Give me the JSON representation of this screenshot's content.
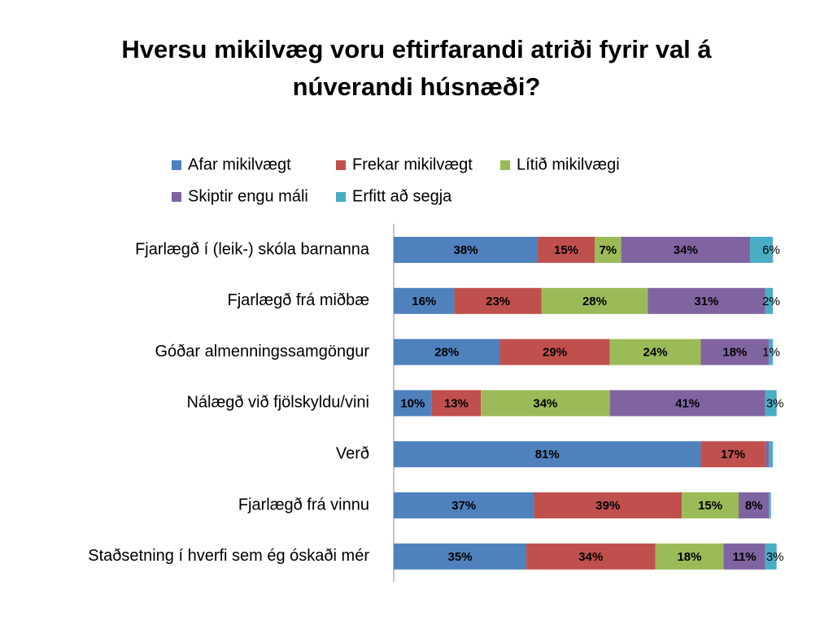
{
  "chart_data": {
    "type": "stacked-bar-horizontal",
    "title": "Hversu mikilvæg voru eftirfarandi atriði fyrir val á núverandi húsnæði?",
    "categories": [
      "Fjarlægð í (leik-) skóla barnanna",
      "Fjarlægð frá miðbæ",
      "Góðar almenningssamgöngur",
      "Nálægð við fjölskyldu/vini",
      "Verð",
      "Fjarlægð frá vinnu",
      "Staðsetning í hverfi sem ég óskaði mér"
    ],
    "xlim": [
      0,
      100
    ],
    "series": [
      {
        "name": "Afar mikilvægt",
        "color": "#4f81bd",
        "values": [
          38,
          16,
          28,
          10,
          81,
          37,
          35
        ],
        "value_labels": [
          "38%",
          "16%",
          "28%",
          "10%",
          "81%",
          "37%",
          "35%"
        ]
      },
      {
        "name": "Frekar mikilvægt",
        "color": "#c0504d",
        "values": [
          15,
          23,
          29,
          13,
          17,
          39,
          34
        ],
        "value_labels": [
          "15%",
          "23%",
          "29%",
          "13%",
          "17%",
          "39%",
          "34%"
        ]
      },
      {
        "name": "Lítið mikilvægi",
        "color": "#9bbb59",
        "values": [
          7,
          28,
          24,
          34,
          0,
          15,
          18
        ],
        "value_labels": [
          "7%",
          "28%",
          "24%",
          "34%",
          null,
          "15%",
          "18%"
        ]
      },
      {
        "name": "Skiptir engu máli",
        "color": "#8064a2",
        "values": [
          34,
          31,
          18,
          41,
          1,
          8,
          11
        ],
        "value_labels": [
          "34%",
          "31%",
          "18%",
          "41%",
          null,
          "8%",
          "11%"
        ]
      },
      {
        "name": "Erfitt að segja",
        "color": "#4bacc6",
        "values": [
          6,
          2,
          1,
          3,
          1,
          0.5,
          3
        ],
        "value_labels": [
          "6%",
          "2%",
          "1%",
          "3%",
          null,
          null,
          "3%"
        ]
      }
    ]
  }
}
